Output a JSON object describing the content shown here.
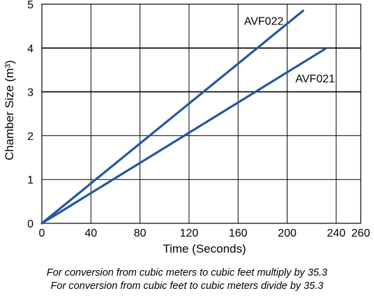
{
  "chart_data": {
    "type": "line",
    "title": "",
    "xlabel": "Time (Seconds)",
    "ylabel": "Chamber Size (m³)",
    "xlim": [
      0,
      260
    ],
    "ylim": [
      0,
      5
    ],
    "x_ticks": [
      "0",
      "40",
      "80",
      "120",
      "160",
      "200",
      "240",
      "260"
    ],
    "y_ticks": [
      "0",
      "1",
      "2",
      "3",
      "4",
      "5"
    ],
    "grid": true,
    "line_color": "#2457a0",
    "series": [
      {
        "name": "AVF022",
        "x": [
          0,
          213
        ],
        "y": [
          0,
          4.85
        ]
      },
      {
        "name": "AVF021",
        "x": [
          0,
          231
        ],
        "y": [
          0,
          3.98
        ]
      }
    ]
  },
  "notes": [
    "For conversion from cubic meters to cubic feet multiply by 35.3",
    "For conversion from cubic feet to cubic meters divide by 35.3"
  ]
}
